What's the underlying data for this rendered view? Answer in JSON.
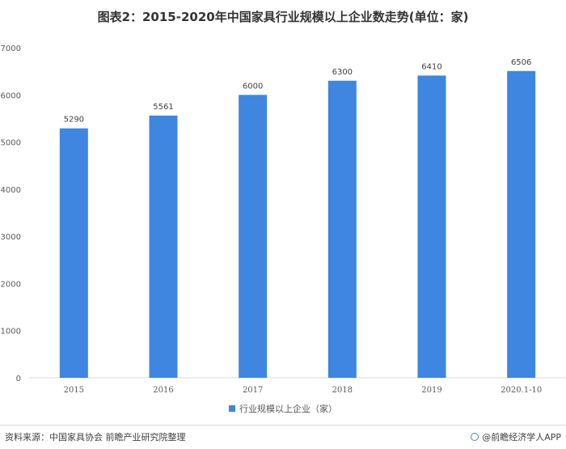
{
  "title": "图表2：2015-2020年中国家具行业规模以上企业数走势(单位：家)",
  "footer": {
    "source": "资料来源：中国家具协会 前瞻产业研究院整理",
    "brand": "@前瞻经济学人APP"
  },
  "colors": {
    "bar": "#3E86E0"
  },
  "chart_data": {
    "type": "bar",
    "title": "图表2：2015-2020年中国家具行业规模以上企业数走势(单位：家)",
    "categories": [
      "2015",
      "2016",
      "2017",
      "2018",
      "2019",
      "2020.1-10"
    ],
    "series": [
      {
        "name": "行业规模以上企业（家）",
        "values": [
          5290,
          5561,
          6000,
          6300,
          6410,
          6506
        ]
      }
    ],
    "ylim": [
      0,
      7000
    ],
    "yticks": [
      0,
      1000,
      2000,
      3000,
      4000,
      5000,
      6000,
      7000
    ],
    "grid": false,
    "legend_position": "bottom",
    "data_labels": true
  }
}
